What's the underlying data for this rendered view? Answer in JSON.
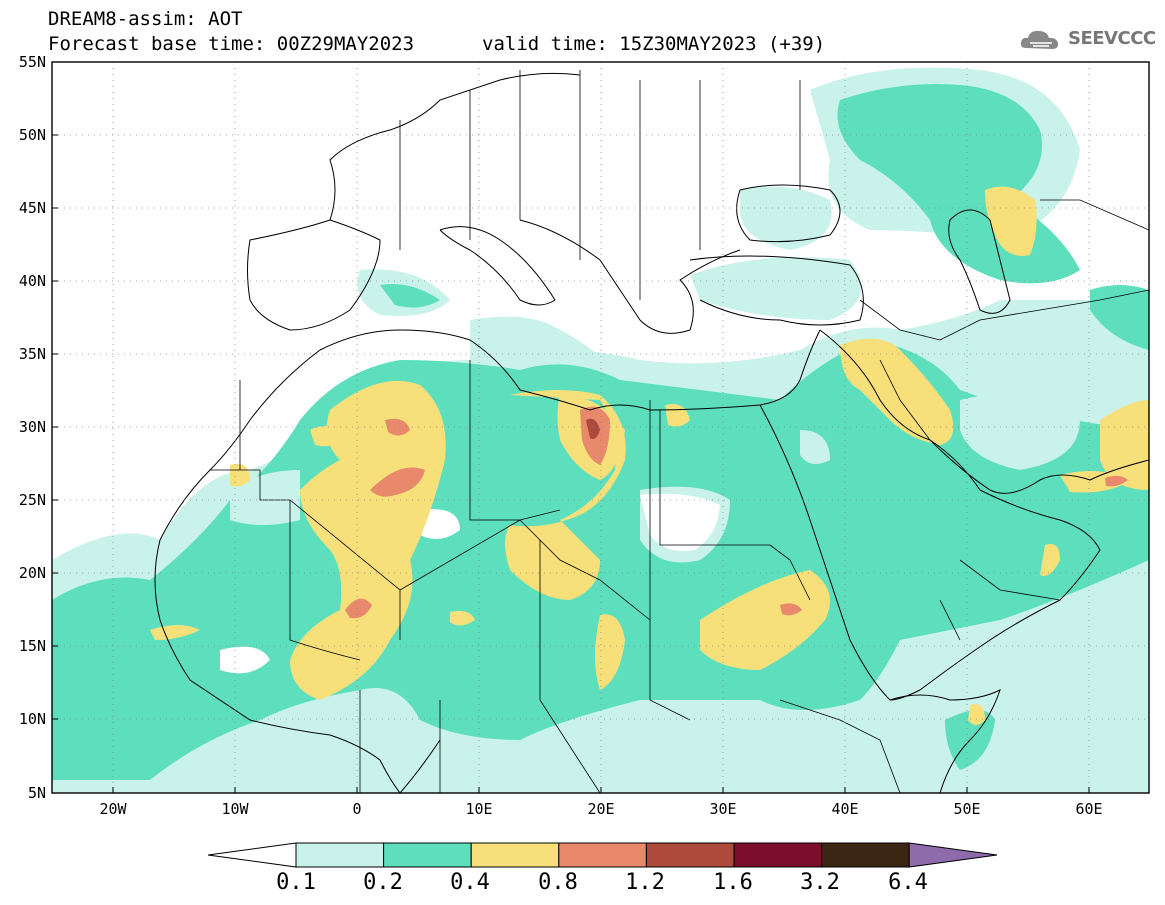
{
  "header": {
    "title_line1": "DREAM8-assim: AOT",
    "title_line2": "Forecast base time: 00Z29MAY2023",
    "valid_time": "valid time: 15Z30MAY2023 (+39)",
    "logo_text": "SEEVCCC",
    "logo_icon": "cloud-icon"
  },
  "map": {
    "lat_labels": [
      "55N",
      "50N",
      "45N",
      "40N",
      "35N",
      "30N",
      "25N",
      "20N",
      "15N",
      "10N",
      "5N"
    ],
    "lon_labels": [
      "20W",
      "10W",
      "0",
      "10E",
      "20E",
      "30E",
      "40E",
      "50E",
      "60E"
    ],
    "extent": {
      "lon_min": -25,
      "lon_max": 65,
      "lat_min": 5,
      "lat_max": 55
    }
  },
  "legend": {
    "labels": [
      "0.1",
      "0.2",
      "0.4",
      "0.8",
      "1.2",
      "1.6",
      "3.2",
      "6.4"
    ],
    "colors": [
      "#ffffff",
      "#c9f2ea",
      "#5ddfbd",
      "#f7e07a",
      "#e8896b",
      "#ad4a3b",
      "#7a0e2c",
      "#3a2612",
      "#8f6bab"
    ]
  }
}
